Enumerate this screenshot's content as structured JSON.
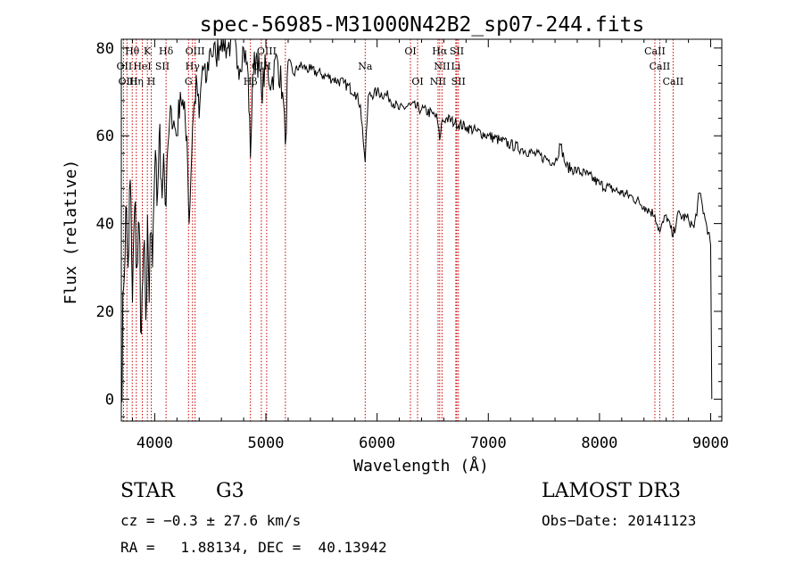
{
  "chart_data": {
    "type": "line",
    "title": "spec-56985-M31000N42B2_sp07-244.fits",
    "xlabel": "Wavelength (Å)",
    "ylabel": "Flux (relative)",
    "xlim": [
      3700,
      9100
    ],
    "ylim": [
      -5,
      82
    ],
    "xticks": [
      4000,
      5000,
      6000,
      7000,
      8000,
      9000
    ],
    "yticks": [
      0,
      20,
      40,
      60,
      80
    ],
    "series": [
      {
        "name": "flux",
        "x": [
          3700,
          3720,
          3740,
          3760,
          3780,
          3800,
          3820,
          3840,
          3860,
          3880,
          3900,
          3920,
          3935,
          3950,
          3968,
          3980,
          4000,
          4020,
          4040,
          4060,
          4080,
          4102,
          4120,
          4150,
          4180,
          4200,
          4230,
          4260,
          4290,
          4310,
          4340,
          4360,
          4380,
          4400,
          4430,
          4460,
          4500,
          4550,
          4600,
          4650,
          4700,
          4750,
          4800,
          4840,
          4861,
          4880,
          4920,
          4960,
          5000,
          5050,
          5100,
          5150,
          5175,
          5200,
          5250,
          5300,
          5400,
          5500,
          5600,
          5700,
          5800,
          5850,
          5893,
          5920,
          6000,
          6100,
          6200,
          6300,
          6400,
          6500,
          6540,
          6563,
          6580,
          6620,
          6700,
          6800,
          6900,
          7000,
          7100,
          7200,
          7300,
          7400,
          7500,
          7600,
          7650,
          7700,
          7800,
          7900,
          8000,
          8100,
          8200,
          8300,
          8400,
          8498,
          8542,
          8600,
          8662,
          8700,
          8800,
          8850,
          8900,
          8950,
          8980,
          9000,
          9010
        ],
        "values": [
          0,
          25,
          44,
          30,
          50,
          22,
          44,
          30,
          40,
          15,
          34,
          18,
          42,
          22,
          38,
          30,
          52,
          44,
          60,
          50,
          56,
          44,
          58,
          66,
          62,
          60,
          70,
          66,
          60,
          40,
          62,
          68,
          72,
          64,
          76,
          72,
          80,
          78,
          83,
          80,
          82,
          76,
          80,
          74,
          55,
          74,
          79,
          70,
          76,
          72,
          78,
          70,
          58,
          77,
          74,
          76,
          75,
          74,
          73,
          72,
          70,
          67,
          54,
          69,
          70,
          69,
          66,
          67,
          66,
          65,
          64,
          59,
          63,
          64,
          63,
          62,
          61,
          60,
          59,
          58,
          57,
          56,
          55,
          54,
          58,
          53,
          52,
          51,
          49,
          48,
          47,
          46,
          44,
          42,
          38,
          42,
          37,
          42,
          41,
          39,
          47,
          41,
          38,
          35,
          0
        ]
      }
    ],
    "line_markers": {
      "color": "#cc0000",
      "wavelengths": [
        3720,
        3750,
        3798,
        3835,
        3889,
        3934,
        3969,
        4102,
        4304,
        4340,
        4363,
        4861,
        4959,
        5007,
        5175,
        5893,
        6300,
        6364,
        6548,
        6563,
        6584,
        6708,
        6717,
        6731,
        8498,
        8542,
        8662
      ]
    },
    "line_labels": [
      {
        "text": "Hθ",
        "wl": 3798,
        "row": 1
      },
      {
        "text": "K",
        "wl": 3934,
        "row": 1
      },
      {
        "text": "Hδ",
        "wl": 4102,
        "row": 1
      },
      {
        "text": "OIII",
        "wl": 4363,
        "row": 1
      },
      {
        "text": "OIII",
        "wl": 5007,
        "row": 1
      },
      {
        "text": "OI",
        "wl": 6300,
        "row": 1
      },
      {
        "text": "Hα",
        "wl": 6563,
        "row": 1
      },
      {
        "text": "SII",
        "wl": 6717,
        "row": 1
      },
      {
        "text": "CaII",
        "wl": 8498,
        "row": 1
      },
      {
        "text": "OII",
        "wl": 3727,
        "row": 2
      },
      {
        "text": "HeI",
        "wl": 3889,
        "row": 2
      },
      {
        "text": "SII",
        "wl": 4069,
        "row": 2
      },
      {
        "text": "Hγ",
        "wl": 4340,
        "row": 2
      },
      {
        "text": "OIII",
        "wl": 4959,
        "row": 2
      },
      {
        "text": "Na",
        "wl": 5893,
        "row": 2
      },
      {
        "text": "NII",
        "wl": 6584,
        "row": 2
      },
      {
        "text": "Li",
        "wl": 6708,
        "row": 2
      },
      {
        "text": "CaII",
        "wl": 8542,
        "row": 2
      },
      {
        "text": "OIII",
        "wl": 3760,
        "row": 3
      },
      {
        "text": "Hη",
        "wl": 3835,
        "row": 3
      },
      {
        "text": "H",
        "wl": 3969,
        "row": 3
      },
      {
        "text": "G",
        "wl": 4304,
        "row": 3
      },
      {
        "text": "Hβ",
        "wl": 4861,
        "row": 3
      },
      {
        "text": "OI",
        "wl": 6364,
        "row": 3
      },
      {
        "text": "NII",
        "wl": 6548,
        "row": 3
      },
      {
        "text": "SII",
        "wl": 6731,
        "row": 3
      },
      {
        "text": "CaII",
        "wl": 8662,
        "row": 3
      }
    ]
  },
  "info": {
    "object_class": "STAR",
    "subclass": "G3",
    "survey": "LAMOST DR3",
    "redshift": "cz = −0.3 ± 27.6 km/s",
    "obs_date": "Obs−Date: 20141123",
    "coords": "RA =   1.88134, DEC =  40.13942"
  }
}
